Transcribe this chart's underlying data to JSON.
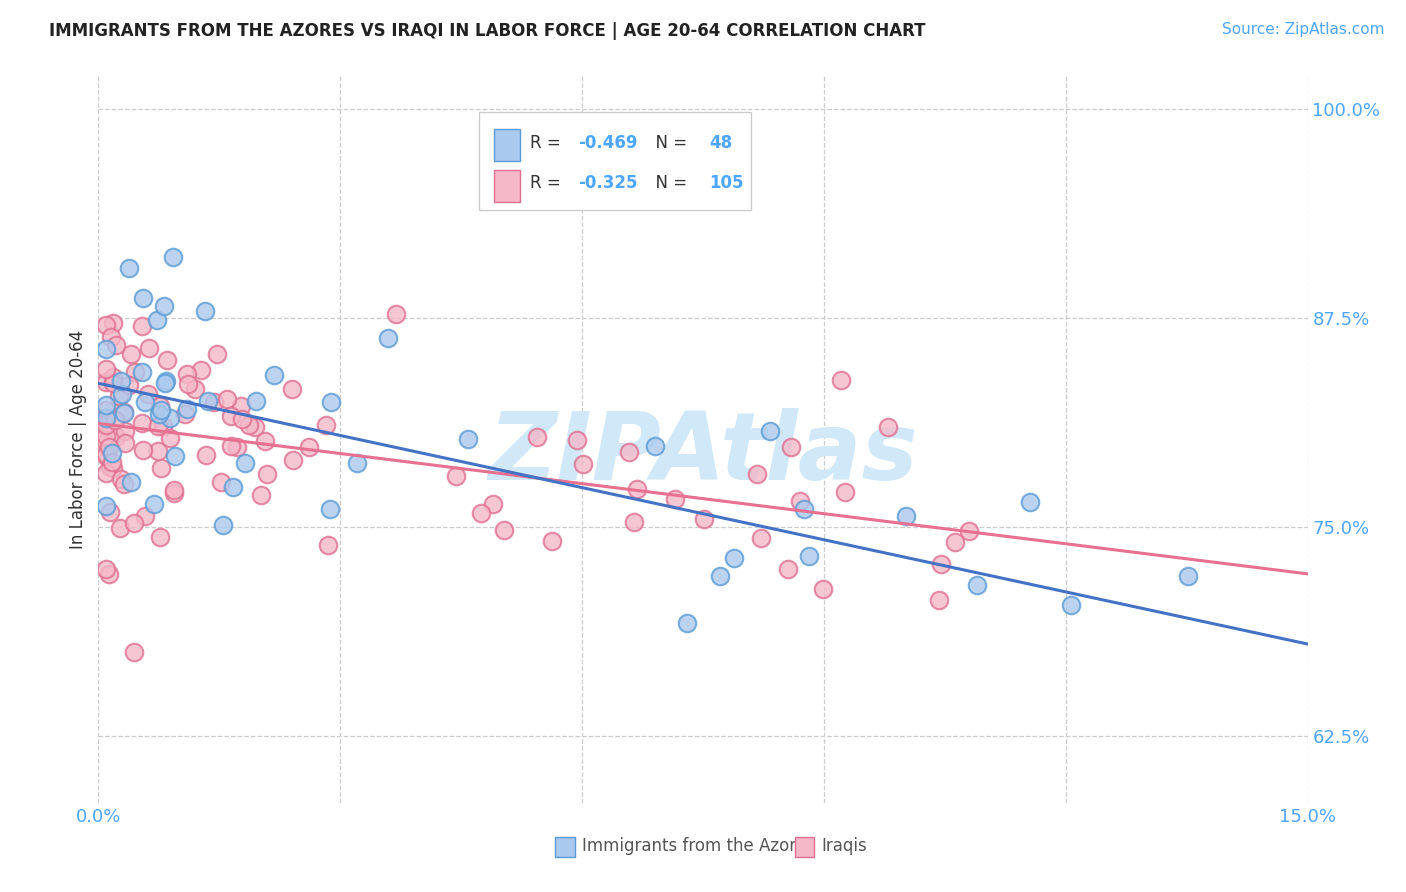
{
  "title": "IMMIGRANTS FROM THE AZORES VS IRAQI IN LABOR FORCE | AGE 20-64 CORRELATION CHART",
  "source": "Source: ZipAtlas.com",
  "ylabel": "In Labor Force | Age 20-64",
  "xlim": [
    0.0,
    0.15
  ],
  "ylim": [
    0.585,
    1.02
  ],
  "xtick_pos": [
    0.0,
    0.03,
    0.06,
    0.09,
    0.12,
    0.15
  ],
  "ytick_positions": [
    1.0,
    0.875,
    0.75,
    0.625
  ],
  "ytick_labels": [
    "100.0%",
    "87.5%",
    "75.0%",
    "62.5%"
  ],
  "legend_line1": "R = -0.469   N =  48",
  "legend_line2": "R = -0.325   N = 105",
  "blue_fill": "#aac9ee",
  "blue_edge": "#5b9bd5",
  "pink_fill": "#f4b8c8",
  "pink_edge": "#e07090",
  "blue_line": "#4472c4",
  "pink_line": "#e87090",
  "watermark": "ZIPAtlas",
  "watermark_color": "#d0e8f8",
  "title_fontsize": 12,
  "axis_label_fontsize": 12,
  "tick_fontsize": 13,
  "source_fontsize": 11,
  "blue_intercept": 0.836,
  "blue_slope": -1.04,
  "pink_intercept": 0.812,
  "pink_slope": -0.6
}
